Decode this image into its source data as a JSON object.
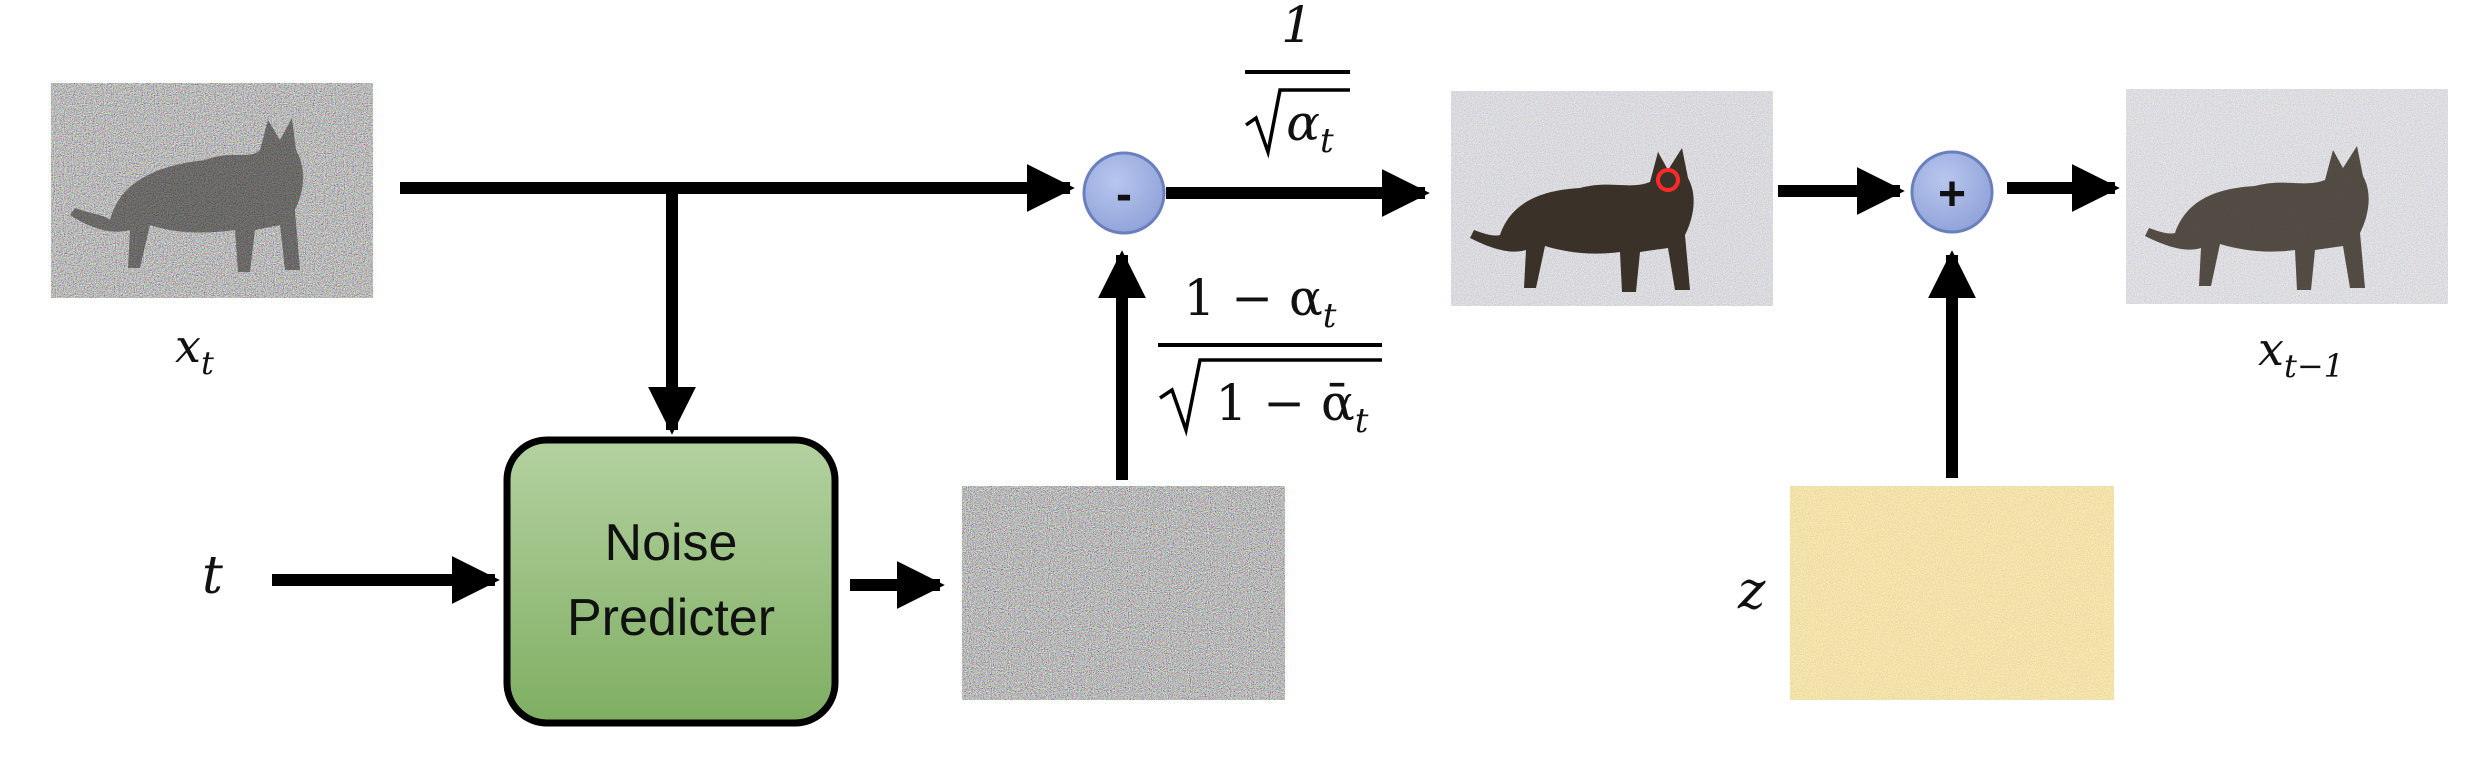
{
  "diagram": {
    "inputs": {
      "xt_label": "x",
      "xt_sub": "t",
      "t_label": "t",
      "z_label": "z"
    },
    "output": {
      "label": "x",
      "sub": "t−1"
    },
    "predictor": {
      "line1": "Noise",
      "line2": "Predicter"
    },
    "operators": {
      "minus": "-",
      "plus": "+"
    },
    "coefficients": {
      "scale_num": "1",
      "scale_den": "α",
      "scale_den_sub": "t",
      "noise_num": "1 − α",
      "noise_num_sub": "t",
      "noise_den": "1 − ᾱ",
      "noise_den_sub": "t"
    },
    "colors": {
      "predictor_fill_top": "#b3d1a0",
      "predictor_fill_bottom": "#7fae62",
      "operator_fill": "#8fa2d8",
      "operator_stroke": "#6b7fbf",
      "arrow": "#000000",
      "noise_yellow": "#e9c879",
      "cat_fur": "#3a3128",
      "red_marker": "#ff2a2a"
    }
  }
}
